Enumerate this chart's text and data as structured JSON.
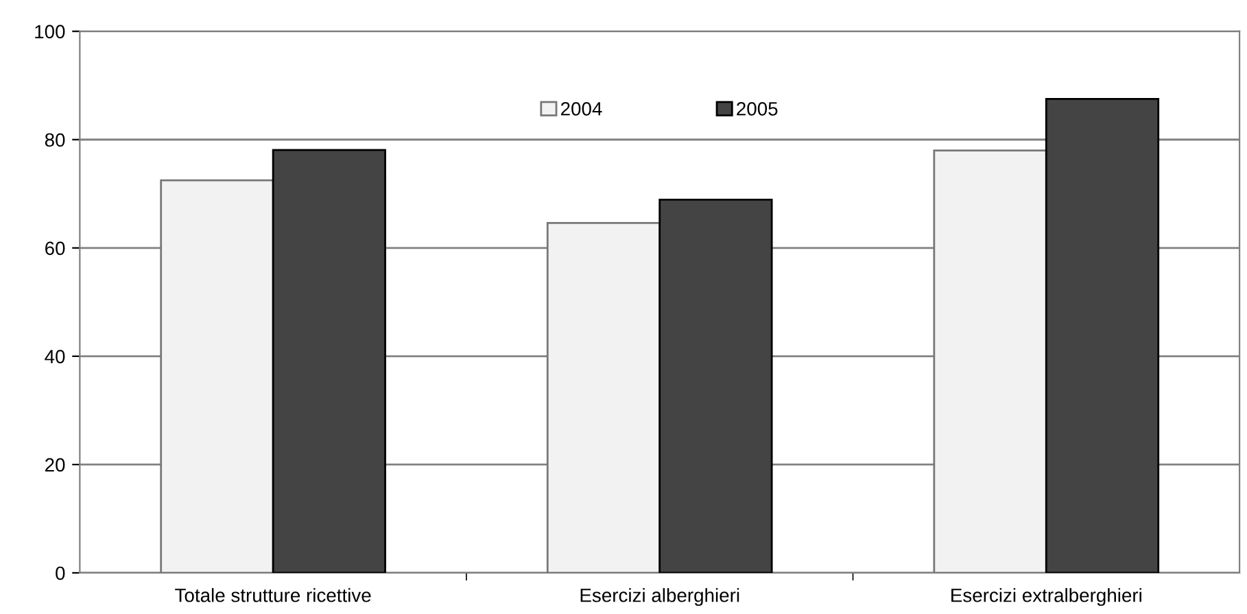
{
  "chart_data": {
    "type": "bar",
    "categories": [
      "Totale strutture ricettive",
      "Esercizi alberghieri",
      "Esercizi extralberghieri"
    ],
    "series": [
      {
        "name": "2004",
        "color": "#f2f2f2",
        "values": [
          72.5,
          64.6,
          78.0
        ]
      },
      {
        "name": "2005",
        "color": "#444444",
        "values": [
          78.1,
          68.9,
          87.5
        ]
      }
    ],
    "ylim": [
      0,
      100
    ],
    "yticks": [
      0,
      20,
      40,
      60,
      80,
      100
    ],
    "grid": "y",
    "legend": "top"
  }
}
